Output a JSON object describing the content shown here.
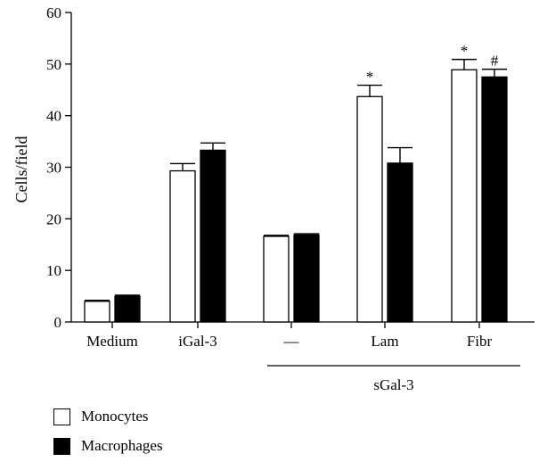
{
  "chart_data": {
    "type": "bar",
    "ylabel": "Cells/field",
    "ylim": [
      0,
      60
    ],
    "yticks": [
      "0",
      "10",
      "20",
      "30",
      "40",
      "50",
      "60"
    ],
    "categories": [
      "Medium",
      "iGal-3",
      "—",
      "Lam",
      "Fibr"
    ],
    "group_label": "sGal-3",
    "series": [
      {
        "name": "Monocytes",
        "color": "#ffffff",
        "values": [
          4.0,
          29.3,
          16.6,
          43.7,
          48.9
        ],
        "errors": [
          0.2,
          1.4,
          0.2,
          2.2,
          2.0
        ],
        "annotations": [
          "",
          "",
          "",
          "*",
          "*"
        ]
      },
      {
        "name": "Macrophages",
        "color": "#000000",
        "values": [
          5.0,
          33.3,
          16.9,
          30.8,
          47.5
        ],
        "errors": [
          0.2,
          1.4,
          0.2,
          3.0,
          1.5
        ],
        "annotations": [
          "",
          "",
          "",
          "",
          "#"
        ]
      }
    ]
  },
  "legend": {
    "items": [
      {
        "label": "Monocytes",
        "swatch": "#ffffff"
      },
      {
        "label": "Macrophages",
        "swatch": "#000000"
      }
    ]
  }
}
